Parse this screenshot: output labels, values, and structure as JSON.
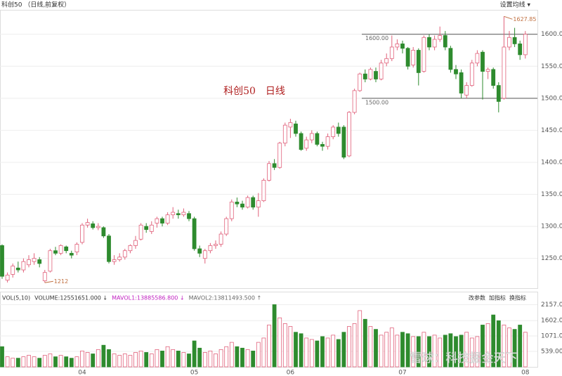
{
  "chart_data": {
    "type": "candlestick",
    "title": "科创50 （日线,前复权）",
    "ma_setting": "设置均线 ▾",
    "annotation": "科创50　日线",
    "categories": [
      null,
      null,
      null,
      null,
      null,
      null,
      null,
      null,
      null,
      null,
      null,
      null,
      null,
      null,
      null,
      "04",
      null,
      null,
      null,
      null,
      null,
      null,
      null,
      null,
      null,
      null,
      null,
      null,
      null,
      null,
      null,
      null,
      null,
      null,
      null,
      null,
      "05",
      null,
      null,
      null,
      null,
      null,
      null,
      null,
      null,
      null,
      null,
      null,
      null,
      null,
      null,
      null,
      null,
      null,
      "06",
      null,
      null,
      null,
      null,
      null,
      null,
      null,
      null,
      null,
      null,
      null,
      null,
      null,
      null,
      null,
      null,
      null,
      null,
      null,
      null,
      "07",
      null,
      null,
      null,
      null,
      null,
      null,
      null,
      null,
      null,
      null,
      null,
      null,
      null,
      null,
      null,
      null,
      null,
      null,
      null,
      null,
      null,
      null,
      "08"
    ],
    "open": [
      1270,
      1216,
      1225,
      1235,
      1232,
      1240,
      1245,
      1248,
      1215,
      1230,
      1262,
      1258,
      1268,
      1258,
      1260,
      1275,
      1302,
      1304,
      1298,
      1298,
      1285,
      1245,
      1248,
      1252,
      1262,
      1270,
      1280,
      1300,
      1292,
      1305,
      1312,
      1305,
      1318,
      1320,
      1318,
      1320,
      1312,
      1265,
      1250,
      1262,
      1270,
      1272,
      1288,
      1312,
      1338,
      1335,
      1330,
      1345,
      1330,
      1340,
      1372,
      1398,
      1392,
      1430,
      1455,
      1460,
      1445,
      1422,
      1435,
      1445,
      1428,
      1425,
      1440,
      1455,
      1455,
      1410,
      1478,
      1512,
      1538,
      1530,
      1542,
      1530,
      1555,
      1562,
      1580,
      1585,
      1578,
      1552,
      1575,
      1542,
      1595,
      1580,
      1592,
      1598,
      1578,
      1545,
      1540,
      1505,
      1520,
      1555,
      1572,
      1542,
      1545,
      1520,
      1500,
      1580,
      1595,
      1585,
      1568
    ],
    "high": [
      1272,
      1228,
      1242,
      1245,
      1250,
      1255,
      1258,
      1252,
      1232,
      1265,
      1268,
      1272,
      1270,
      1262,
      1275,
      1305,
      1312,
      1308,
      1305,
      1300,
      1288,
      1255,
      1258,
      1265,
      1272,
      1285,
      1305,
      1305,
      1308,
      1315,
      1315,
      1322,
      1330,
      1326,
      1328,
      1324,
      1315,
      1270,
      1265,
      1274,
      1278,
      1292,
      1315,
      1342,
      1345,
      1340,
      1348,
      1348,
      1352,
      1375,
      1402,
      1405,
      1432,
      1462,
      1468,
      1465,
      1448,
      1440,
      1450,
      1448,
      1432,
      1445,
      1458,
      1462,
      1458,
      1480,
      1515,
      1540,
      1545,
      1548,
      1548,
      1560,
      1570,
      1598,
      1592,
      1590,
      1580,
      1580,
      1578,
      1598,
      1600,
      1598,
      1612,
      1605,
      1582,
      1552,
      1545,
      1525,
      1560,
      1575,
      1575,
      1548,
      1548,
      1525,
      1627.85,
      1605,
      1610,
      1590,
      1605
    ],
    "low": [
      1218,
      1212.34,
      1220,
      1228,
      1228,
      1236,
      1240,
      1236,
      1212,
      1228,
      1255,
      1255,
      1258,
      1250,
      1255,
      1272,
      1298,
      1295,
      1294,
      1282,
      1242,
      1240,
      1245,
      1248,
      1258,
      1265,
      1278,
      1290,
      1288,
      1298,
      1300,
      1302,
      1312,
      1312,
      1315,
      1308,
      1262,
      1252,
      1242,
      1258,
      1265,
      1268,
      1285,
      1308,
      1330,
      1326,
      1328,
      1326,
      1315,
      1338,
      1370,
      1388,
      1390,
      1425,
      1438,
      1440,
      1418,
      1418,
      1430,
      1425,
      1418,
      1420,
      1436,
      1440,
      1405,
      1408,
      1475,
      1510,
      1525,
      1528,
      1525,
      1528,
      1550,
      1558,
      1575,
      1570,
      1545,
      1548,
      1520,
      1540,
      1575,
      1575,
      1588,
      1575,
      1540,
      1530,
      1500,
      1500,
      1518,
      1550,
      1498,
      1530,
      1515,
      1478,
      1498,
      1575,
      1580,
      1560,
      1562
    ],
    "close": [
      1222,
      1224,
      1238,
      1232,
      1245,
      1248,
      1250,
      1242,
      1228,
      1262,
      1258,
      1270,
      1262,
      1255,
      1272,
      1302,
      1306,
      1298,
      1300,
      1285,
      1245,
      1248,
      1252,
      1262,
      1270,
      1278,
      1302,
      1295,
      1302,
      1312,
      1305,
      1318,
      1322,
      1318,
      1322,
      1312,
      1265,
      1258,
      1262,
      1270,
      1272,
      1288,
      1312,
      1338,
      1335,
      1330,
      1345,
      1330,
      1340,
      1372,
      1398,
      1392,
      1430,
      1458,
      1462,
      1445,
      1420,
      1435,
      1445,
      1428,
      1425,
      1440,
      1455,
      1445,
      1408,
      1478,
      1512,
      1538,
      1530,
      1545,
      1530,
      1555,
      1562,
      1580,
      1585,
      1578,
      1550,
      1575,
      1540,
      1595,
      1580,
      1592,
      1598,
      1580,
      1545,
      1538,
      1508,
      1520,
      1555,
      1570,
      1542,
      1545,
      1520,
      1495,
      1580,
      1595,
      1585,
      1568,
      1600
    ],
    "volume": [
      700,
      350,
      300,
      300,
      350,
      400,
      350,
      300,
      400,
      450,
      350,
      400,
      350,
      300,
      350,
      550,
      500,
      450,
      600,
      750,
      600,
      450,
      400,
      450,
      400,
      500,
      550,
      500,
      450,
      600,
      550,
      700,
      600,
      550,
      500,
      450,
      900,
      650,
      500,
      550,
      450,
      600,
      700,
      850,
      700,
      650,
      600,
      550,
      850,
      1000,
      1450,
      2157,
      1700,
      1500,
      1400,
      1200,
      1150,
      1000,
      950,
      900,
      1050,
      1000,
      1100,
      950,
      1200,
      1400,
      1500,
      1950,
      1650,
      1400,
      1300,
      1100,
      1200,
      1350,
      1100,
      1200,
      1150,
      1050,
      1050,
      1200,
      1050,
      1100,
      1000,
      1100,
      1150,
      1050,
      1100,
      1200,
      1000,
      1050,
      1450,
      1500,
      1800,
      1600,
      1450,
      1350,
      1300,
      1450,
      1200
    ],
    "up_color": "#e0607a",
    "down_color": "#2e8b2e",
    "ylim": [
      1209,
      1637
    ],
    "yticks": [
      {
        "value": 1250,
        "label": "1250.00"
      },
      {
        "value": 1300,
        "label": "1300.00"
      },
      {
        "value": 1350,
        "label": "1350.00"
      },
      {
        "value": 1400,
        "label": "1400.00"
      },
      {
        "value": 1450,
        "label": "1450.00"
      },
      {
        "value": 1500,
        "label": "1500.00"
      },
      {
        "value": 1550,
        "label": "1550.00"
      },
      {
        "value": 1600,
        "label": "1600.00"
      }
    ],
    "reference_lines": [
      {
        "value": 1600,
        "label": "1600.00"
      },
      {
        "value": 1500,
        "label": "1500.00"
      }
    ],
    "volume_ylim": [
      0,
      2290
    ],
    "volume_yticks": [
      {
        "value": 539,
        "label": "539.00"
      },
      {
        "value": 1071,
        "label": "1071.00"
      },
      {
        "value": 1602,
        "label": "1602.00"
      },
      {
        "value": 2157,
        "label": "2157.00"
      }
    ],
    "volume_legend": [
      "VOL(5,10)",
      "VOLUME:12551651.000 ↓",
      "MAVOL1:13885586.800 ↓",
      "MAVOL2:13811493.500 ↑"
    ],
    "volume_legend_colors": [
      "#333333",
      "#333333",
      "#c020c0",
      "#666666"
    ],
    "buttons": [
      "改参数",
      "加指标",
      "换指标"
    ],
    "grid": true,
    "watermark": "雪球：科技掘金天下"
  }
}
